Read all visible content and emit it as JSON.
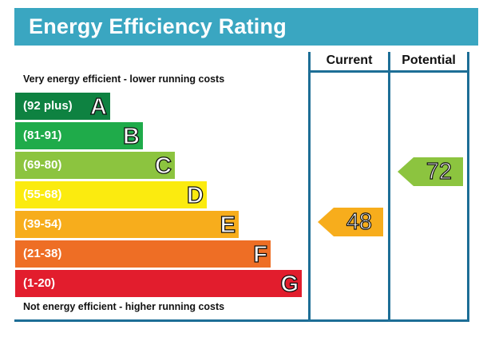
{
  "title": "Energy Efficiency Rating",
  "columns": {
    "current": "Current",
    "potential": "Potential"
  },
  "captions": {
    "top": "Very energy efficient - lower running costs",
    "bottom": "Not energy efficient - higher running costs"
  },
  "bands": [
    {
      "range": "(92 plus)",
      "letter": "A",
      "color": "#0e8241"
    },
    {
      "range": "(81-91)",
      "letter": "B",
      "color": "#1fab4a"
    },
    {
      "range": "(69-80)",
      "letter": "C",
      "color": "#8cc43f"
    },
    {
      "range": "(55-68)",
      "letter": "D",
      "color": "#fbeb0f"
    },
    {
      "range": "(39-54)",
      "letter": "E",
      "color": "#f7ad1c"
    },
    {
      "range": "(21-38)",
      "letter": "F",
      "color": "#ee6e25"
    },
    {
      "range": "(1-20)",
      "letter": "G",
      "color": "#e21d2d"
    }
  ],
  "current_rating": {
    "value": "48",
    "band": "E",
    "color": "#f7ad1c"
  },
  "potential_rating": {
    "value": "72",
    "band": "C",
    "color": "#8cc43f"
  },
  "colors": {
    "title_bar": "#3aa6c1",
    "frame": "#1d6e96"
  }
}
